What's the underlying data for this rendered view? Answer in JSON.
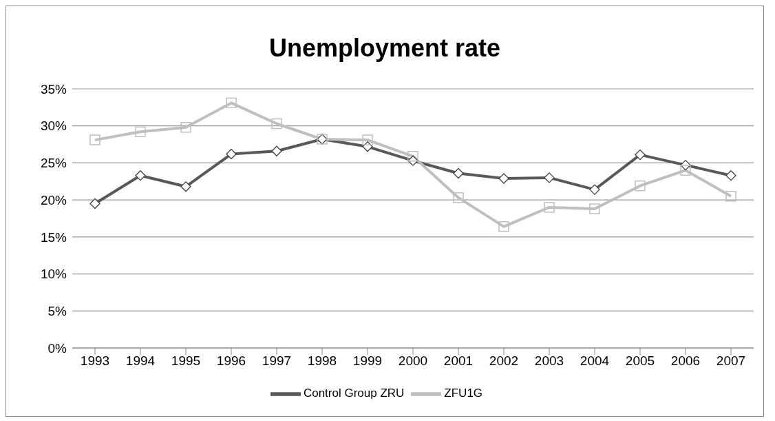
{
  "chart_data": {
    "type": "line",
    "title": "Unemployment rate",
    "categories": [
      "1993",
      "1994",
      "1995",
      "1996",
      "1997",
      "1998",
      "1999",
      "2000",
      "2001",
      "2002",
      "2003",
      "2004",
      "2005",
      "2006",
      "2007"
    ],
    "series": [
      {
        "name": "Control Group ZRU",
        "color": "#595959",
        "marker": "diamond",
        "values": [
          19.5,
          23.3,
          21.8,
          26.2,
          26.6,
          28.2,
          27.2,
          25.3,
          23.6,
          22.9,
          23.0,
          21.4,
          26.1,
          24.7,
          23.3
        ]
      },
      {
        "name": "ZFU1G",
        "color": "#bfbfbf",
        "marker": "square",
        "values": [
          28.1,
          29.2,
          29.8,
          33.1,
          30.3,
          28.2,
          28.1,
          25.9,
          20.3,
          16.4,
          19.0,
          18.8,
          21.9,
          24.0,
          20.5
        ]
      }
    ],
    "ylim": [
      0,
      35
    ],
    "yticks": [
      {
        "value": 0,
        "label": "0%"
      },
      {
        "value": 5,
        "label": "5%"
      },
      {
        "value": 10,
        "label": "10%"
      },
      {
        "value": 15,
        "label": "15%"
      },
      {
        "value": 20,
        "label": "20%"
      },
      {
        "value": 25,
        "label": "25%"
      },
      {
        "value": 30,
        "label": "30%"
      },
      {
        "value": 35,
        "label": "35%"
      }
    ],
    "grid": "y",
    "legend": "bottom",
    "line_style": "solid"
  }
}
